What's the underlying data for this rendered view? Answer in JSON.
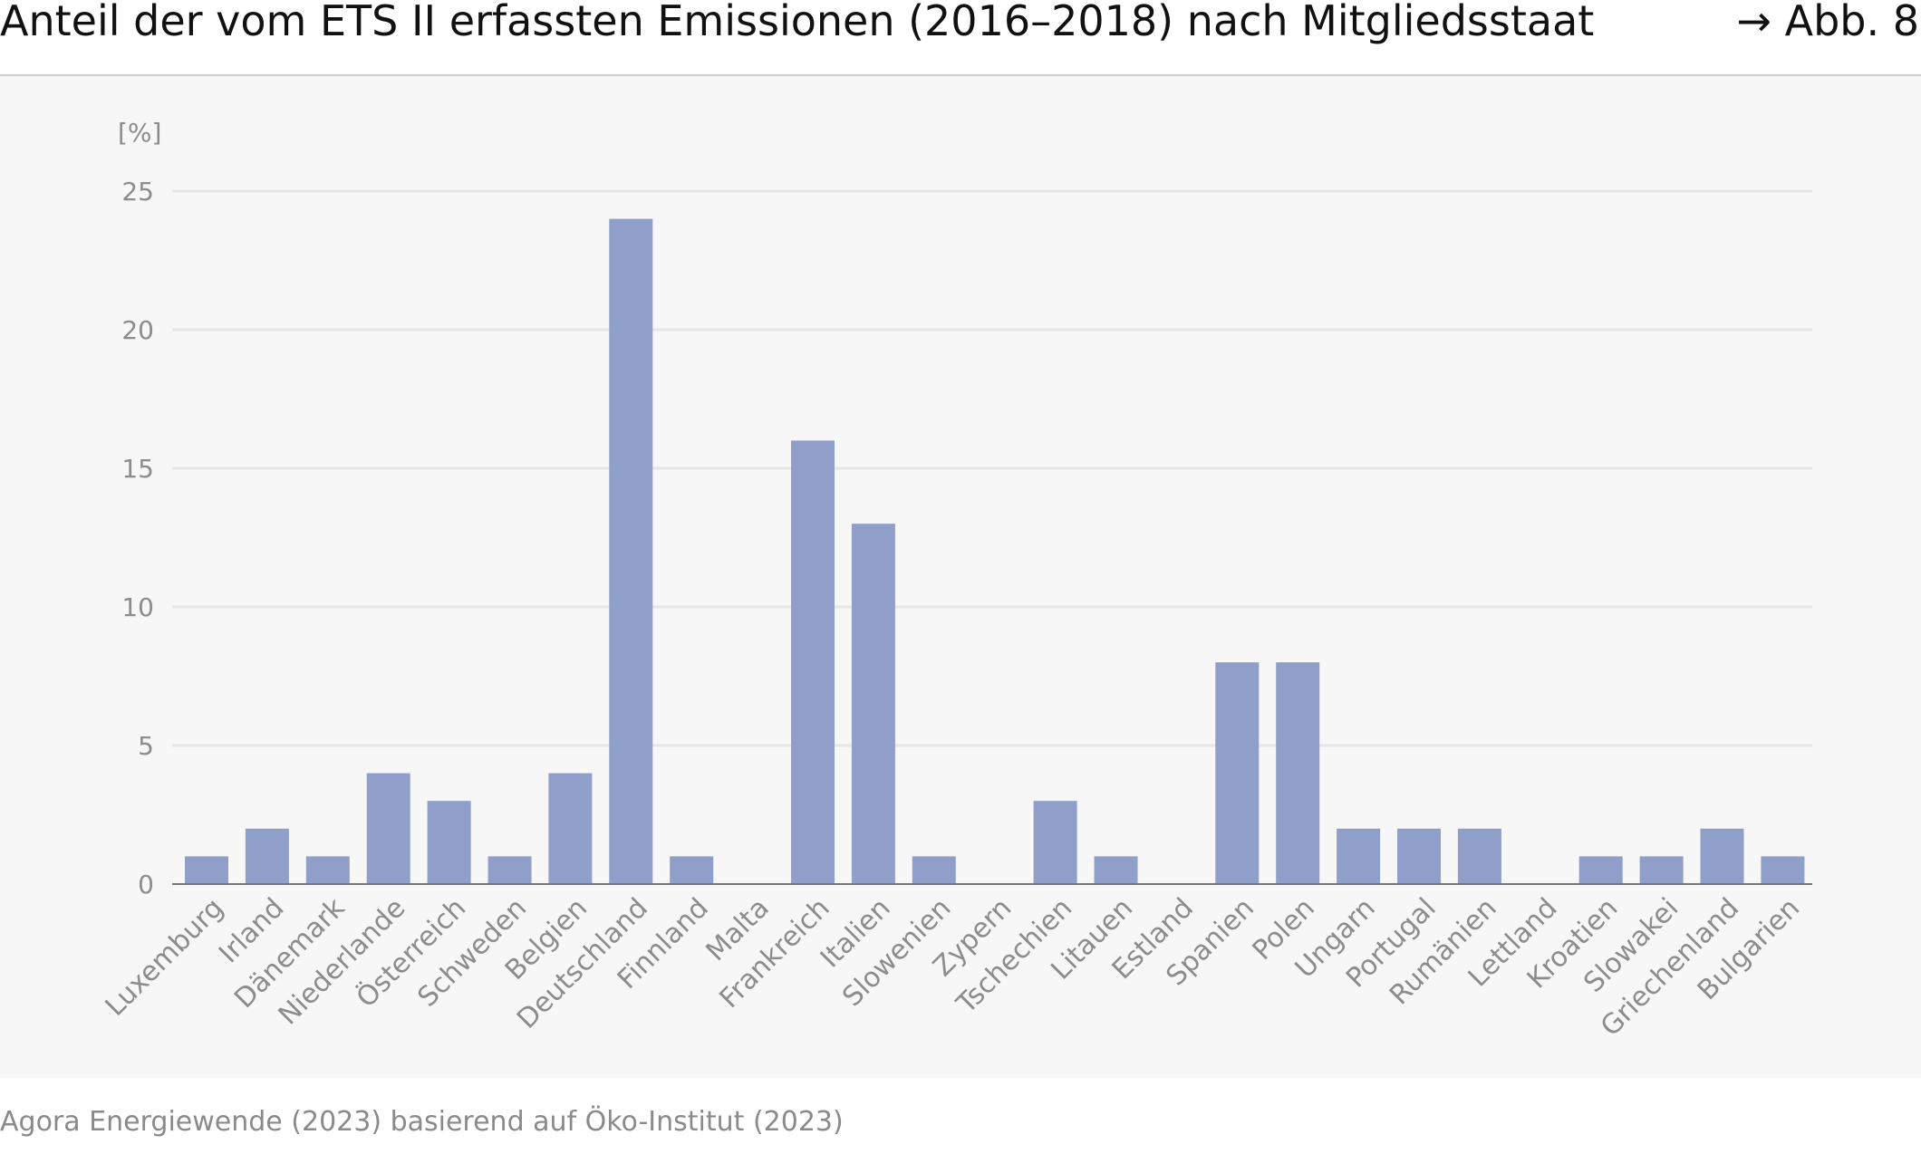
{
  "header": {
    "title": "Anteil der vom ETS II erfassten Emissionen (2016–2018) nach Mitgliedsstaat",
    "figure_ref": "→ Abb. 8"
  },
  "footer": {
    "source": "Agora Energiewende (2023) basierend auf Öko-Institut (2023)"
  },
  "colors": {
    "bar": "#909fc9",
    "grid": "#e6e6e8",
    "axis_text": "#8c8c8c",
    "background": "#f7f7f8"
  },
  "chart_data": {
    "type": "bar",
    "ylabel": "[%]",
    "ylim": [
      0,
      25
    ],
    "yticks": [
      "0",
      "5",
      "10",
      "15",
      "20",
      "25"
    ],
    "grid": true,
    "categories": [
      "Luxemburg",
      "Irland",
      "Dänemark",
      "Niederlande",
      "Österreich",
      "Schweden",
      "Belgien",
      "Deutschland",
      "Finnland",
      "Malta",
      "Frankreich",
      "Italien",
      "Slowenien",
      "Zypern",
      "Tschechien",
      "Litauen",
      "Estland",
      "Spanien",
      "Polen",
      "Ungarn",
      "Portugal",
      "Rumänien",
      "Lettland",
      "Kroatien",
      "Slowakei",
      "Griechenland",
      "Bulgarien"
    ],
    "values": [
      1,
      2,
      1,
      4,
      3,
      1,
      4,
      24,
      1,
      0,
      16,
      13,
      1,
      0,
      3,
      1,
      0,
      8,
      8,
      2,
      2,
      2,
      0,
      1,
      1,
      2,
      1
    ]
  }
}
